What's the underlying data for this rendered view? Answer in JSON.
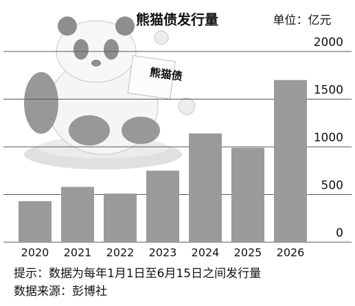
{
  "chart_data": {
    "type": "bar",
    "title": "熊猫债发行量",
    "unit": "单位：亿元",
    "illustration_label": "熊猫债",
    "categories": [
      "2020",
      "2021",
      "2022",
      "2023",
      "2024",
      "2025",
      "2026"
    ],
    "values": [
      430,
      580,
      510,
      750,
      1140,
      990,
      1700
    ],
    "color": "#9a9a9a",
    "ylim": [
      0,
      2000
    ],
    "yticks": [
      0,
      500,
      1000,
      1500,
      2000
    ],
    "grid": true,
    "notes": [
      "提示：数据为每年1月1日至6月15日之间发行量",
      "数据来源：彭博社"
    ]
  }
}
